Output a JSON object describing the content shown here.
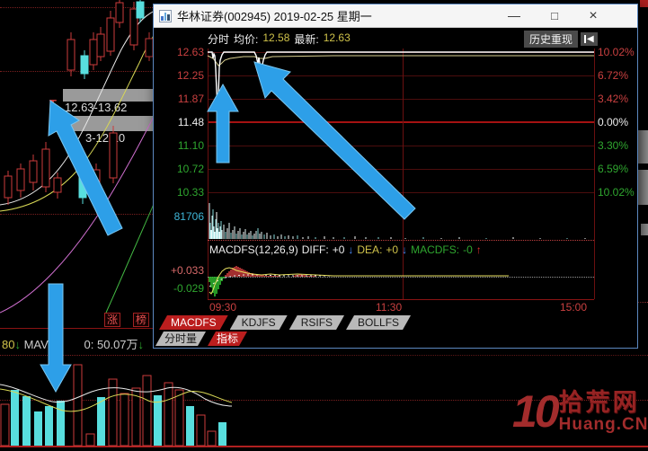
{
  "window": {
    "title": "华林证券(002945) 2019-02-25 星期一",
    "minimize": "—",
    "maximize": "□",
    "close": "×"
  },
  "header": {
    "mode": "分时",
    "avg_label": "均价:",
    "avg_value": "12.58",
    "last_label": "最新:",
    "last_value": "12.63",
    "history_label": "历史重现"
  },
  "axes": {
    "price": [
      {
        "t": "12.63",
        "c": "red"
      },
      {
        "t": "12.25",
        "c": "red"
      },
      {
        "t": "11.87",
        "c": "red"
      },
      {
        "t": "11.48",
        "c": "white"
      },
      {
        "t": "11.10",
        "c": "green"
      },
      {
        "t": "10.72",
        "c": "green"
      },
      {
        "t": "10.33",
        "c": "green"
      }
    ],
    "pct": [
      {
        "t": "10.02%",
        "c": "red"
      },
      {
        "t": "6.72%",
        "c": "red"
      },
      {
        "t": "3.42%",
        "c": "red"
      },
      {
        "t": "0.00%",
        "c": "white"
      },
      {
        "t": "3.30%",
        "c": "green"
      },
      {
        "t": "6.59%",
        "c": "green"
      },
      {
        "t": "10.02%",
        "c": "green"
      }
    ],
    "volume_max": "81706",
    "time": [
      "09:30",
      "11:30",
      "15:00"
    ]
  },
  "macd": {
    "title": "MACDFS(12,26,9)",
    "diff_label": "DIFF:",
    "diff_value": "+0",
    "dea_label": "DEA:",
    "dea_value": "+0",
    "macd_label": "MACDFS:",
    "macd_value": "-0",
    "down_arrow": "↓",
    "up_arrow": "↑",
    "max_value": "+0.033",
    "min_value": "-0.029"
  },
  "tabs": {
    "indicators": [
      {
        "label": "MACDFS",
        "active": true
      },
      {
        "label": "KDJFS",
        "active": false
      },
      {
        "label": "RSIFS",
        "active": false
      },
      {
        "label": "BOLLFS",
        "active": false
      }
    ],
    "panels": [
      {
        "label": "分时量",
        "active": false
      },
      {
        "label": "指标",
        "active": true
      }
    ]
  },
  "background": {
    "range_high": "12.63-13.62",
    "range_low": "3-12.10",
    "btn_zhang": "涨",
    "btn_bang": "榜",
    "t_marker": "T",
    "mavol_prefix": "80",
    "mavol_name": "MAVO",
    "mavol_suffix": "0: 50.07万",
    "down_arrow": "↓"
  },
  "watermark": {
    "number": "10",
    "site": "拾荒网",
    "domain": "Huang.CN"
  },
  "colors": {
    "up_red": "#c94040",
    "down_green": "#2fa62f",
    "limit_tab_red": "#bb1e1e",
    "annotation_arrow_blue": "#2d9fe8",
    "grid_red": "#5c0f0f",
    "avg_line_yellow": "#d9cf8f",
    "volume_cyan": "#58dede"
  },
  "chart_data": [
    {
      "id": "intraday-timeshare",
      "type": "line",
      "title": "分时",
      "avg_price": 12.58,
      "last_price": 12.63,
      "prev_close": 11.48,
      "change_pct": "+10.02%",
      "price_levels": [
        12.63,
        12.25,
        11.87,
        11.48,
        11.1,
        10.72,
        10.33
      ],
      "pct_levels": [
        "10.02%",
        "6.72%",
        "3.42%",
        "0.00%",
        "3.30%",
        "6.59%",
        "10.02%"
      ],
      "x_ticks": [
        "09:30",
        "11:30",
        "15:00"
      ],
      "shape": "opens at limit-up 12.63, two brief dips toward ~12.1 before 10:00, then flat at limit into close"
    },
    {
      "id": "intraday-volume",
      "type": "bar",
      "max_label": "81706",
      "shape": "large opening spikes fading to minimal volume"
    },
    {
      "id": "macd-panel",
      "type": "bar",
      "params": [
        12,
        26,
        9
      ],
      "diff": "+0",
      "dea": "+0",
      "macd": "-0",
      "y_top": "+0.033",
      "y_bottom": "-0.029",
      "shape": "green histogram at open turning red, converging to zero"
    },
    {
      "id": "background-kline",
      "type": "candlestick",
      "annotations": [
        "12.63-13.62",
        "3-12.10"
      ],
      "note": "limit-up ladder of candles rising left to right with gap-ups"
    },
    {
      "id": "background-volume",
      "type": "bar",
      "overlay": "MAVOL ~50.07万",
      "note": "mixed cyan solid and red hollow volume bars with white/yellow MA lines"
    }
  ]
}
